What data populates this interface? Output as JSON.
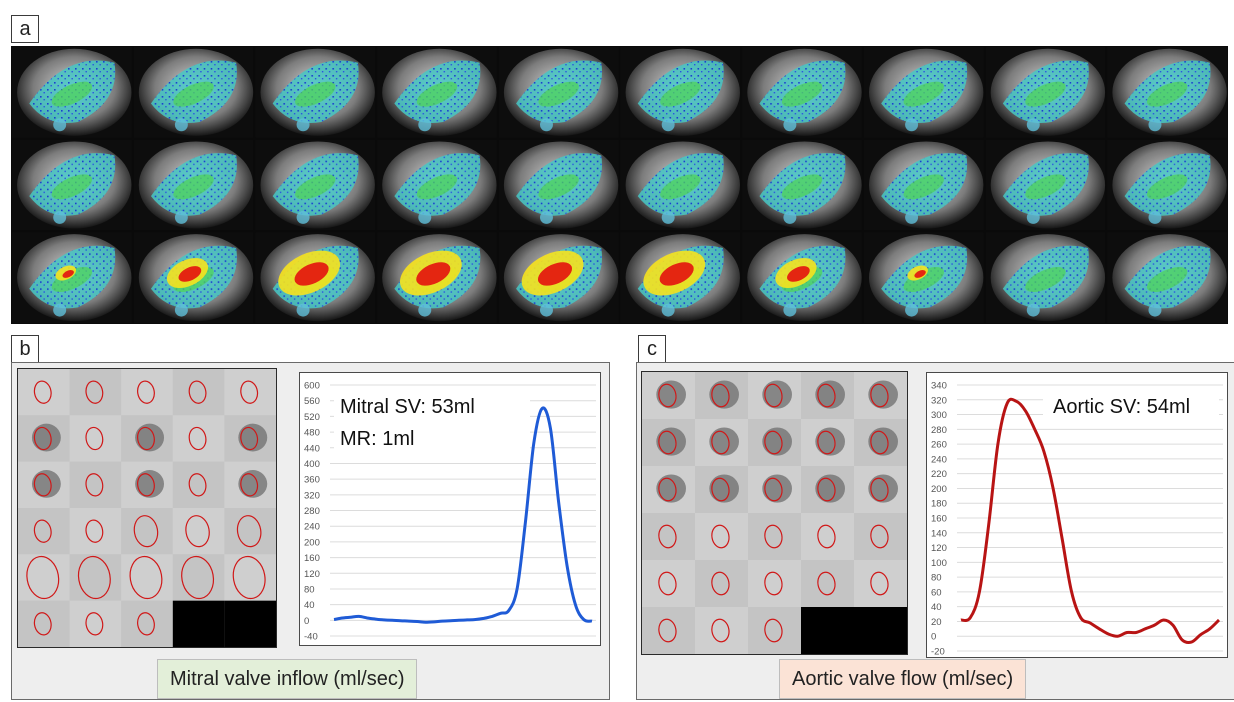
{
  "panels": {
    "a": {
      "label": "a"
    },
    "b": {
      "label": "b",
      "caption": "Mitral valve inflow (ml/sec)",
      "annotations": [
        "Mitral SV: 53ml",
        "MR: 1ml"
      ]
    },
    "c": {
      "label": "c",
      "caption": "Aortic valve flow (ml/sec)",
      "annotations": [
        "Aortic SV: 54ml"
      ]
    }
  },
  "colors": {
    "mitral_line": "#1f5bd6",
    "aortic_line": "#b81414",
    "roi_contour": "#d01818",
    "mitral_caption_bg": "#e3efd9",
    "aortic_caption_bg": "#fbe3d6"
  },
  "chart_data": [
    {
      "type": "line",
      "title": "",
      "xlabel": "",
      "ylabel": "",
      "ylim": [
        -40,
        600
      ],
      "yticks": [
        600,
        560,
        520,
        480,
        440,
        400,
        360,
        320,
        280,
        240,
        200,
        160,
        120,
        80,
        40,
        0,
        -40
      ],
      "grid": true,
      "series": [
        {
          "color": "#1f5bd6",
          "values": [
            2,
            6,
            8,
            10,
            6,
            3,
            1,
            0,
            -1,
            -2,
            -3,
            -5,
            -4,
            -2,
            -1,
            0,
            1,
            2,
            5,
            10,
            18,
            25,
            80,
            250,
            450,
            540,
            490,
            300,
            140,
            40,
            2,
            -2
          ]
        }
      ]
    },
    {
      "type": "line",
      "title": "",
      "xlabel": "",
      "ylabel": "",
      "ylim": [
        -20,
        340
      ],
      "yticks": [
        340,
        320,
        300,
        280,
        260,
        240,
        220,
        200,
        180,
        160,
        140,
        120,
        100,
        80,
        60,
        40,
        20,
        0,
        -20
      ],
      "grid": true,
      "series": [
        {
          "color": "#b81414",
          "values": [
            22,
            25,
            60,
            150,
            260,
            315,
            318,
            305,
            280,
            250,
            200,
            130,
            60,
            25,
            18,
            10,
            3,
            0,
            5,
            5,
            10,
            15,
            22,
            15,
            -5,
            -8,
            2,
            10,
            22
          ]
        }
      ]
    }
  ]
}
